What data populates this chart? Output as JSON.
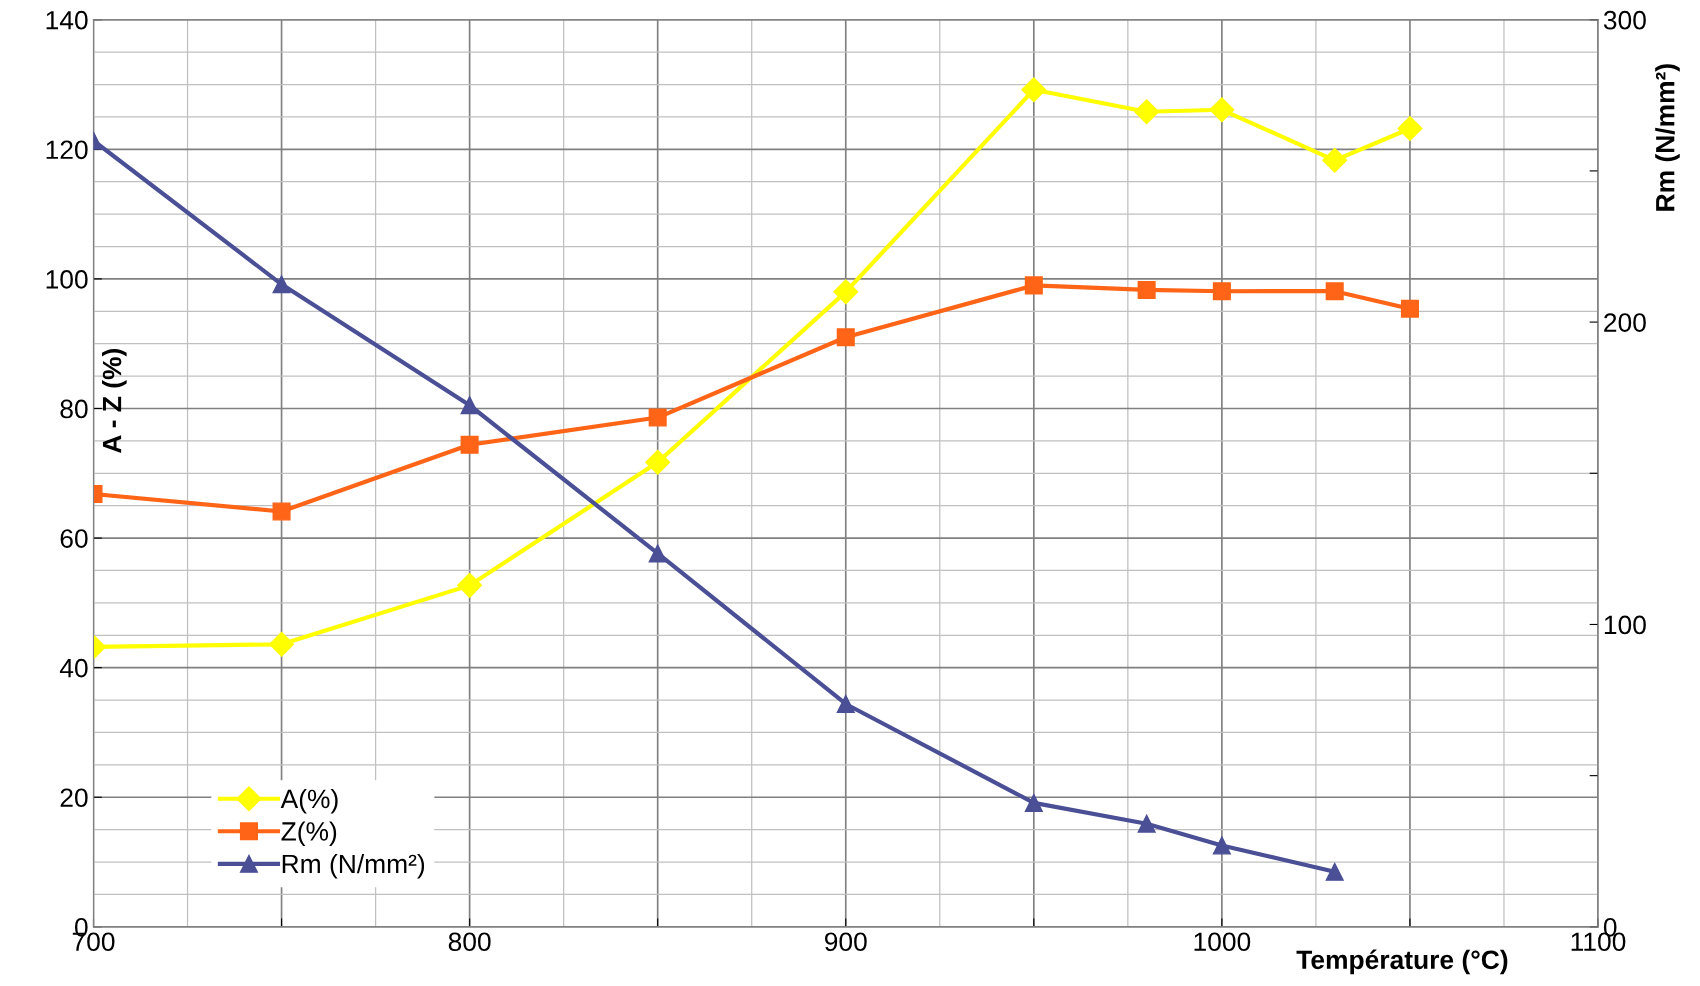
{
  "chart_data": {
    "type": "line",
    "xlabel": "Température (°C)",
    "ylabel": "A - Z (%)",
    "y2label": "Rm (N/mm²)",
    "xlim": [
      700,
      1100
    ],
    "xticks": [
      700,
      {
        "value": 750,
        "label": null
      },
      800,
      {
        "value": 850,
        "label": null
      },
      900,
      {
        "value": 950,
        "label": null
      },
      1000,
      {
        "value": 1050,
        "label": null
      },
      1100
    ],
    "ylim": [
      0,
      140
    ],
    "yticks": [
      0,
      20,
      40,
      60,
      80,
      100,
      120,
      140
    ],
    "y2lim": [
      0,
      300
    ],
    "y2ticks": [
      0,
      {
        "value": 50,
        "label": null
      },
      100,
      {
        "value": 150,
        "label": null
      },
      200,
      {
        "value": 250,
        "label": null
      },
      300
    ],
    "grid": true,
    "legend": "bottom left",
    "line_style": "solid",
    "series": [
      {
        "name": "A(%)",
        "color": "#ffff00",
        "marker": "diamond",
        "x": [
          700,
          750,
          800,
          850,
          900,
          950,
          980,
          1000,
          1030,
          1050
        ],
        "values": [
          43.2,
          43.6,
          52.7,
          71.7,
          98,
          129.2,
          125.8,
          126.1,
          118.3,
          123.2
        ]
      },
      {
        "name": "Z(%)",
        "color": "#ff6417",
        "marker": "square",
        "x": [
          700,
          750,
          800,
          850,
          900,
          950,
          980,
          1000,
          1030,
          1050
        ],
        "values": [
          66.8,
          64.1,
          74.4,
          78.6,
          91.0,
          99.0,
          98.3,
          98.1,
          98.1,
          95.4
        ]
      },
      {
        "name": "Rm (N/mm²)",
        "color": "#4a4f96",
        "marker": "triangle",
        "axis": "y2",
        "x": [
          700,
          750,
          800,
          850,
          900,
          950,
          980,
          1000,
          1030
        ],
        "values": [
          260,
          212.5,
          172.5,
          123.5,
          73.7,
          41,
          34.1,
          26.9,
          18.2
        ]
      }
    ]
  }
}
